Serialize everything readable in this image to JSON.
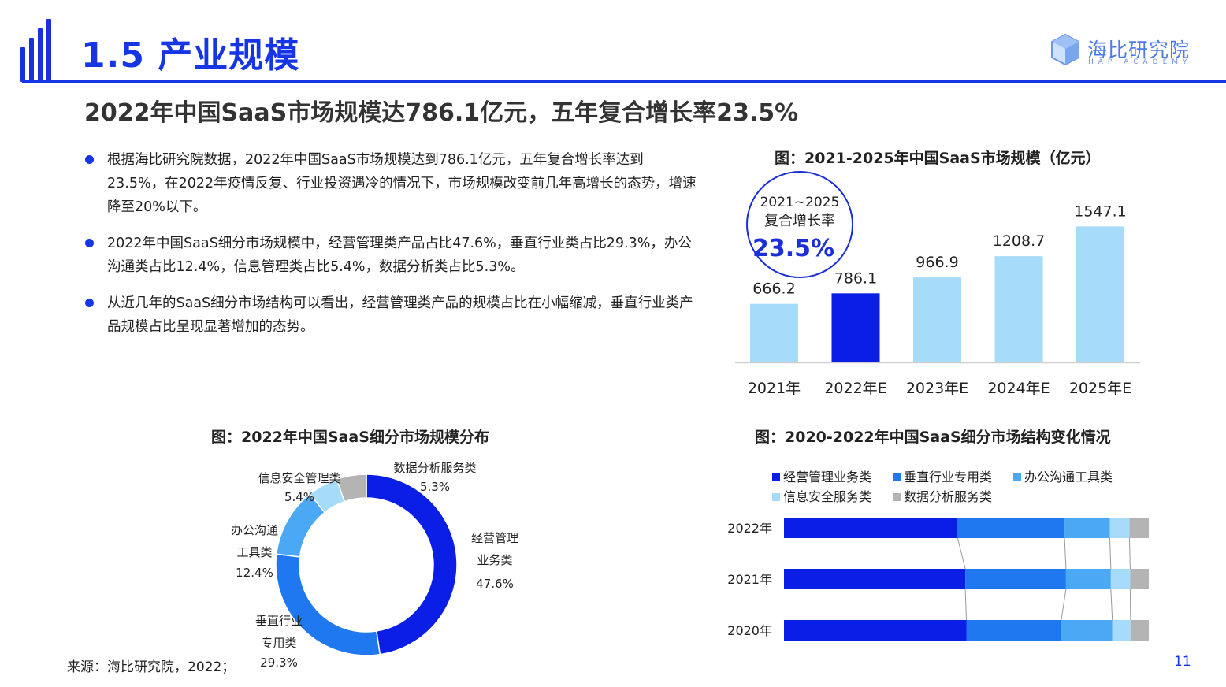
{
  "header": {
    "title": "1.5 产业规模",
    "brand_name": "海比研究院",
    "brand_sub": "HAP ACADEMY"
  },
  "subtitle": "2022年中国SaaS市场规模达786.1亿元，五年复合增长率23.5%",
  "bullets": [
    "根据海比研究院数据，2022年中国SaaS市场规模达到786.1亿元，五年复合增长率达到23.5%，在2022年疫情反复、行业投资遇冷的情况下，市场规模改变前几年高增长的态势，增速降至20%以下。",
    "2022年中国SaaS细分市场规模中，经营管理类产品占比47.6%，垂直行业类占比29.3%，办公沟通类占比12.4%，信息管理类占比5.4%，数据分析类占比5.3%。",
    "从近几年的SaaS细分市场结构可以看出，经营管理类产品的规模占比在小幅缩减，垂直行业类产品规模占比呈现显著增加的态势。"
  ],
  "colors": {
    "brand": "#1636e6",
    "dark_blue": "#0a1ee6",
    "mid_blue": "#1f78f0",
    "sky_blue": "#4aa8f5",
    "light_blue": "#a6dcfa",
    "gray": "#b4b4b4"
  },
  "source": "来源：海比研究院，2022；",
  "page_number": "11",
  "chart_data": [
    {
      "type": "bar",
      "title": "图：2021-2025年中国SaaS市场规模（亿元）",
      "categories": [
        "2021年",
        "2022年E",
        "2023年E",
        "2024年E",
        "2025年E"
      ],
      "values": [
        666.2,
        786.1,
        966.9,
        1208.7,
        1547.1
      ],
      "value_labels": [
        "666.2",
        "786.1",
        "966.9",
        "1208.7",
        "1547.1"
      ],
      "highlight_index": 1,
      "ylim": [
        0,
        1600
      ],
      "annotation": {
        "line1": "2021~2025",
        "line2": "复合增长率",
        "value": "23.5%"
      }
    },
    {
      "type": "pie",
      "title": "图：2022年中国SaaS细分市场规模分布",
      "slices": [
        {
          "name": "经营管理业务类",
          "label_lines": [
            "经营管理",
            "业务类"
          ],
          "value": 47.6,
          "pct": "47.6%"
        },
        {
          "name": "垂直行业专用类",
          "label_lines": [
            "垂直行业",
            "专用类"
          ],
          "value": 29.3,
          "pct": "29.3%"
        },
        {
          "name": "办公沟通工具类",
          "label_lines": [
            "办公沟通",
            "工具类"
          ],
          "value": 12.4,
          "pct": "12.4%"
        },
        {
          "name": "信息安全管理类",
          "label_lines": [
            "信息安全管理类"
          ],
          "value": 5.4,
          "pct": "5.4%"
        },
        {
          "name": "数据分析服务类",
          "label_lines": [
            "数据分析服务类"
          ],
          "value": 5.3,
          "pct": "5.3%"
        }
      ]
    },
    {
      "type": "bar",
      "orientation": "horizontal-stacked-100",
      "title": "图：2020-2022年中国SaaS细分市场结构变化情况",
      "categories": [
        "2022年",
        "2021年",
        "2020年"
      ],
      "series": [
        {
          "name": "经营管理业务类",
          "values": [
            47.6,
            49.7,
            50.0
          ]
        },
        {
          "name": "垂直行业专用类",
          "values": [
            29.3,
            27.6,
            26.0
          ]
        },
        {
          "name": "办公沟通工具类",
          "values": [
            12.4,
            12.3,
            14.0
          ]
        },
        {
          "name": "信息安全服务类",
          "values": [
            5.4,
            5.3,
            5.0
          ]
        },
        {
          "name": "数据分析服务类",
          "values": [
            5.3,
            5.1,
            5.0
          ]
        }
      ]
    }
  ]
}
